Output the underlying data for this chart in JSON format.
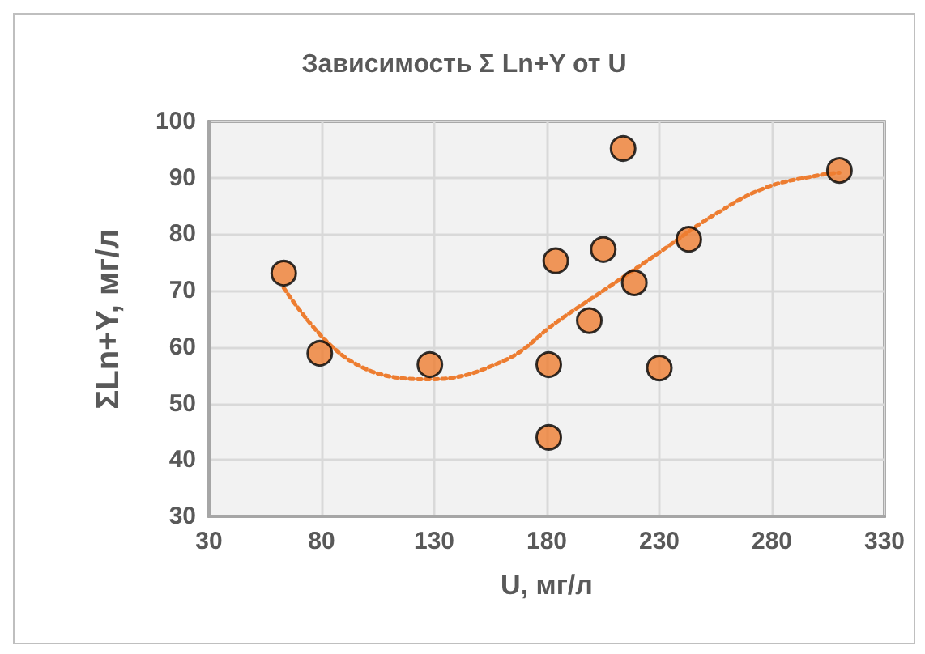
{
  "chart_data": {
    "type": "scatter",
    "title": "Зависимость Σ Ln+Y от U",
    "xlabel": "U, мг/л",
    "ylabel": "ΣLn+Y, мг/л",
    "xlim": [
      30,
      330
    ],
    "xticks": [
      30,
      80,
      130,
      180,
      230,
      280,
      330
    ],
    "ylim": [
      30,
      100
    ],
    "yticks": [
      30,
      40,
      50,
      60,
      70,
      80,
      90,
      100
    ],
    "grid": true,
    "series": [
      {
        "color": "#ed7d31",
        "marker": "circle",
        "x": [
          63.2,
          79.2,
          128.1,
          180.9,
          180.9,
          184,
          198.9,
          205.1,
          213.9,
          218.9,
          230,
          243.1,
          310
        ],
        "values": [
          73.1,
          58.9,
          56.9,
          56.9,
          44.0,
          75.3,
          64.7,
          77.3,
          95.2,
          71.4,
          56.3,
          79.1,
          91.3
        ]
      },
      {
        "type": "line",
        "color": "#ed7d31",
        "line_style": "dotted",
        "marker": "none",
        "x": [
          63.2,
          92.3,
          128,
          161.5,
          184.6,
          207.7,
          230.8,
          253.8,
          276.9,
          300,
          310
        ],
        "values": [
          70.5,
          57.7,
          54.3,
          57.7,
          64.5,
          70.7,
          77,
          83.3,
          88.2,
          90.4,
          90.9
        ]
      }
    ]
  }
}
